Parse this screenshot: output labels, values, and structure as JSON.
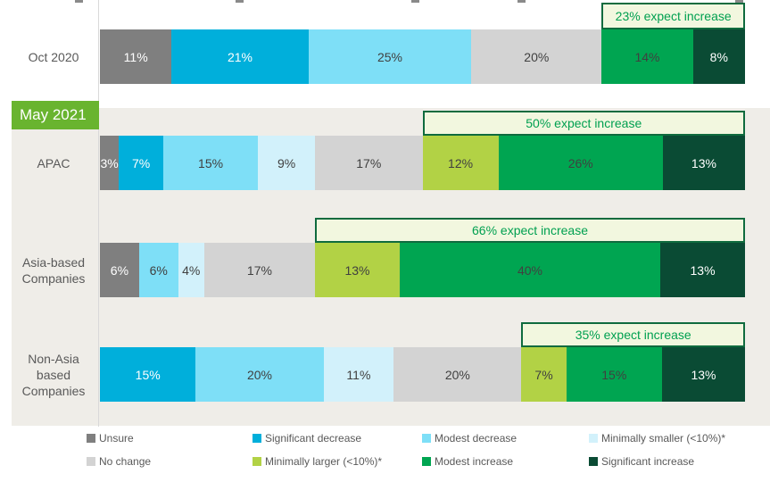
{
  "may_label": "May 2021",
  "colors": {
    "segment": {
      "unsure": "#7F7F7F",
      "sig_decrease": "#00AFDB",
      "modest_decrease": "#7EDFF7",
      "min_smaller": "#D2F1FB",
      "no_change": "#D3D3D3",
      "min_larger": "#B2D245",
      "modest_increase": "#00A551",
      "sig_increase": "#0A4B34"
    },
    "may_label_bg": "#69B42F",
    "callout_bg": "#F2F7DF",
    "callout_border": "#0F6B3E",
    "callout_text": "#00A050",
    "panel_bg": "#EFEDE8",
    "axis": "#D9D9D9",
    "category_text": "#595959",
    "dark_value_text": "#404040",
    "light_value_text": "#FFFFFF"
  },
  "legend": {
    "rows": [
      [
        {
          "key": "unsure",
          "label": "Unsure"
        },
        {
          "key": "sig_decrease",
          "label": "Significant decrease"
        },
        {
          "key": "modest_decrease",
          "label": "Modest decrease"
        },
        {
          "key": "min_smaller",
          "label": "Minimally smaller (<10%)*"
        }
      ],
      [
        {
          "key": "no_change",
          "label": "No change"
        },
        {
          "key": "min_larger",
          "label": "Minimally larger (<10%)*"
        },
        {
          "key": "modest_increase",
          "label": "Modest increase"
        },
        {
          "key": "sig_increase",
          "label": "Significant increase"
        }
      ]
    ]
  },
  "chart_data": {
    "type": "bar",
    "subtype": "horizontal-100pct-stacked",
    "legend_position": "bottom",
    "grid": false,
    "series_order": [
      "unsure",
      "sig_decrease",
      "modest_decrease",
      "min_smaller",
      "no_change",
      "min_larger",
      "modest_increase",
      "sig_increase"
    ],
    "series_names": {
      "unsure": "Unsure",
      "sig_decrease": "Significant decrease",
      "modest_decrease": "Modest decrease",
      "min_smaller": "Minimally smaller (<10%)*",
      "no_change": "No change",
      "min_larger": "Minimally larger (<10%)*",
      "modest_increase": "Modest increase",
      "sig_increase": "Significant increase"
    },
    "increase_keys": [
      "min_larger",
      "modest_increase",
      "sig_increase"
    ],
    "rows": [
      {
        "label_lines": [
          "Oct 2020"
        ],
        "group": "Oct 2020",
        "callout": "23% expect increase",
        "segments": [
          {
            "key": "unsure",
            "value": 11
          },
          {
            "key": "sig_decrease",
            "value": 21
          },
          {
            "key": "modest_decrease",
            "value": 25
          },
          {
            "key": "no_change",
            "value": 20
          },
          {
            "key": "modest_increase",
            "value": 14
          },
          {
            "key": "sig_increase",
            "value": 8
          }
        ]
      },
      {
        "label_lines": [
          "APAC"
        ],
        "group": "May 2021",
        "callout": "50% expect increase",
        "segments": [
          {
            "key": "unsure",
            "value": 3
          },
          {
            "key": "sig_decrease",
            "value": 7
          },
          {
            "key": "modest_decrease",
            "value": 15
          },
          {
            "key": "min_smaller",
            "value": 9
          },
          {
            "key": "no_change",
            "value": 17
          },
          {
            "key": "min_larger",
            "value": 12
          },
          {
            "key": "modest_increase",
            "value": 26
          },
          {
            "key": "sig_increase",
            "value": 13
          }
        ]
      },
      {
        "label_lines": [
          "Asia-based",
          "Companies"
        ],
        "group": "May 2021",
        "callout": "66% expect increase",
        "segments": [
          {
            "key": "unsure",
            "value": 6
          },
          {
            "key": "modest_decrease",
            "value": 6
          },
          {
            "key": "min_smaller",
            "value": 4
          },
          {
            "key": "no_change",
            "value": 17
          },
          {
            "key": "min_larger",
            "value": 13
          },
          {
            "key": "modest_increase",
            "value": 40
          },
          {
            "key": "sig_increase",
            "value": 13
          }
        ]
      },
      {
        "label_lines": [
          "Non-Asia",
          "based",
          "Companies"
        ],
        "group": "May 2021",
        "callout": "35% expect increase",
        "segments": [
          {
            "key": "sig_decrease",
            "value": 15
          },
          {
            "key": "modest_decrease",
            "value": 20
          },
          {
            "key": "min_smaller",
            "value": 11
          },
          {
            "key": "no_change",
            "value": 20
          },
          {
            "key": "min_larger",
            "value": 7
          },
          {
            "key": "modest_increase",
            "value": 15
          },
          {
            "key": "sig_increase",
            "value": 13
          }
        ]
      }
    ]
  }
}
